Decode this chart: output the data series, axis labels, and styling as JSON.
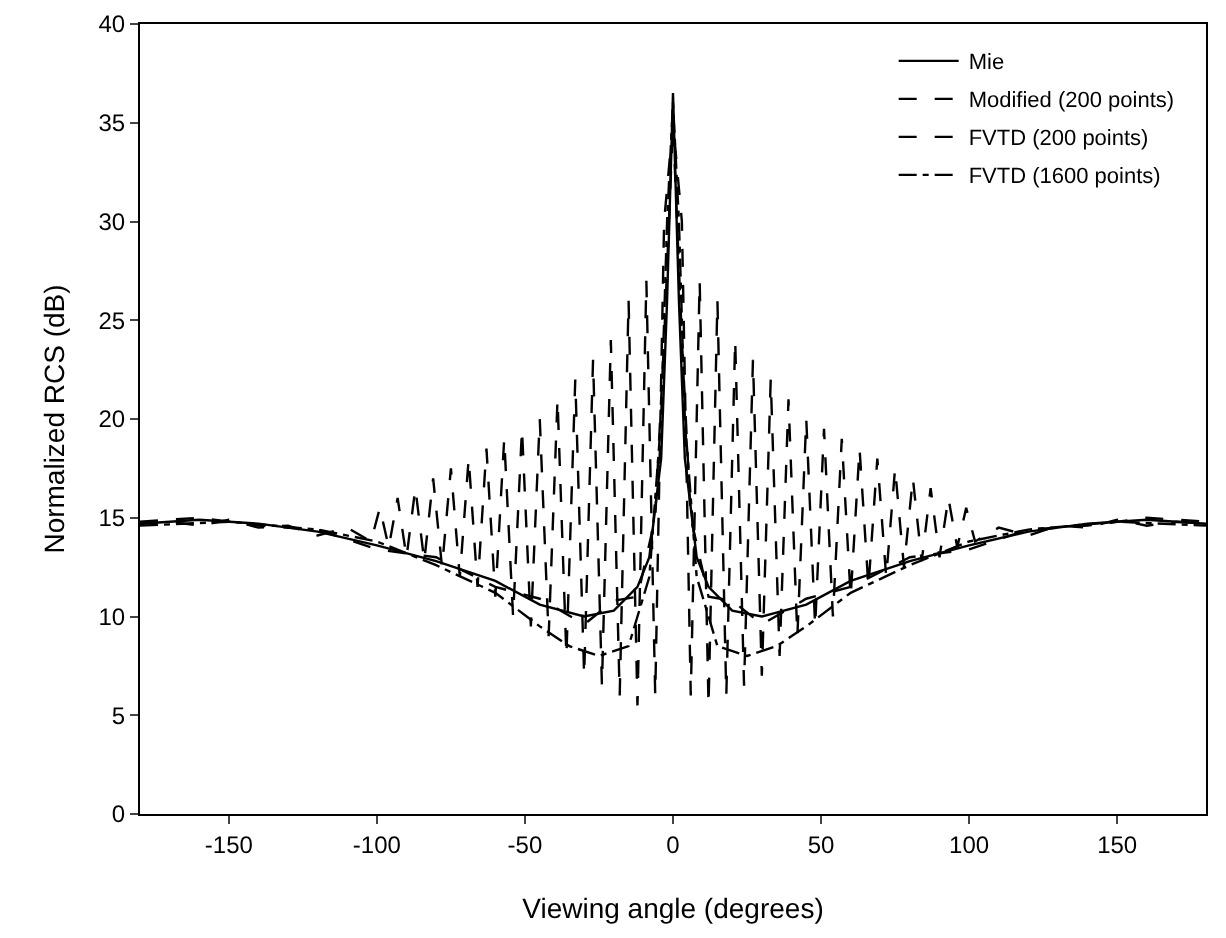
{
  "chart_data": {
    "type": "line",
    "xlabel": "Viewing angle (degrees)",
    "ylabel": "Normalized RCS (dB)",
    "xlim": [
      -180,
      180
    ],
    "xticks": [
      -150,
      -100,
      -50,
      0,
      50,
      100,
      150
    ],
    "ylim": [
      0,
      40
    ],
    "yticks": [
      0,
      5,
      10,
      15,
      20,
      25,
      30,
      35,
      40
    ],
    "grid": false,
    "legend": "top right",
    "marker": "none",
    "series": [
      {
        "name": "Mie",
        "color": "#000000",
        "line_style": "solid",
        "x": [
          -180,
          -160,
          -140,
          -120,
          -100,
          -80,
          -60,
          -45,
          -30,
          -20,
          -12,
          -8,
          -4,
          -2,
          0,
          2,
          4,
          8,
          12,
          20,
          30,
          45,
          60,
          80,
          100,
          120,
          140,
          160,
          180
        ],
        "values": [
          14.7,
          14.9,
          14.7,
          14.3,
          13.6,
          12.8,
          11.8,
          10.6,
          10.0,
          10.3,
          11.5,
          13,
          18,
          26,
          36.5,
          26,
          18,
          13,
          11.5,
          10.3,
          10.0,
          10.6,
          11.8,
          12.8,
          13.6,
          14.3,
          14.7,
          14.9,
          14.7
        ]
      },
      {
        "name": "Modified (200 points)",
        "color": "#000000",
        "line_style": "dashed",
        "x": [
          -180,
          -160,
          -140,
          -120,
          -100,
          -80,
          -60,
          -45,
          -30,
          -20,
          -12,
          -6,
          -3,
          0,
          3,
          6,
          12,
          20,
          30,
          45,
          60,
          80,
          100,
          120,
          140,
          160,
          180
        ],
        "values": [
          14.8,
          15.0,
          14.6,
          14.4,
          13.4,
          13.0,
          11.5,
          10.9,
          9.6,
          10.8,
          11,
          15,
          24,
          35,
          24,
          15,
          11,
          10.8,
          9.6,
          10.9,
          11.5,
          13.0,
          13.4,
          14.4,
          14.6,
          15.0,
          14.8
        ]
      },
      {
        "name": "FVTD (200 points)",
        "color": "#000000",
        "line_style": "dashed",
        "x": [
          -180,
          -170,
          -160,
          -150,
          -140,
          -130,
          -120,
          -110,
          -102,
          -99,
          -96,
          -93,
          -90,
          -87,
          -84,
          -81,
          -78,
          -75,
          -72,
          -69,
          -66,
          -63,
          -60,
          -57,
          -54,
          -51,
          -48,
          -45,
          -42,
          -39,
          -36,
          -33,
          -30,
          -27,
          -24,
          -21,
          -18,
          -15,
          -12,
          -9,
          -6,
          -3,
          0,
          3,
          6,
          9,
          12,
          15,
          18,
          21,
          24,
          27,
          30,
          33,
          36,
          39,
          42,
          45,
          48,
          51,
          54,
          57,
          60,
          63,
          66,
          69,
          72,
          75,
          78,
          81,
          84,
          87,
          90,
          93,
          96,
          99,
          102,
          110,
          120,
          130,
          140,
          150,
          160,
          170,
          180
        ],
        "values": [
          14.7,
          14.8,
          14.6,
          14.9,
          14.5,
          14.6,
          14.1,
          14.5,
          13.8,
          15.5,
          13.5,
          16,
          13,
          16.5,
          12.8,
          17,
          12.5,
          17.5,
          12,
          18,
          11.5,
          18.5,
          11,
          19,
          10,
          19.5,
          9.5,
          20,
          9,
          21,
          8,
          22,
          7,
          23,
          6.5,
          24,
          6,
          26,
          5.5,
          27,
          6,
          30,
          35,
          30,
          6,
          27,
          5.5,
          26,
          6,
          24,
          6.5,
          23,
          7,
          22,
          8,
          21,
          9,
          20,
          9.5,
          19.5,
          10,
          19,
          11,
          18.5,
          11.5,
          18,
          12,
          17.5,
          12.5,
          17,
          12.8,
          16.5,
          13,
          16,
          13.5,
          15.5,
          13.8,
          14.5,
          14.1,
          14.6,
          14.5,
          14.9,
          14.6,
          14.8,
          14.7
        ]
      },
      {
        "name": "FVTD (1600 points)",
        "color": "#000000",
        "line_style": "dotted",
        "x": [
          -180,
          -150,
          -120,
          -100,
          -80,
          -60,
          -45,
          -35,
          -25,
          -15,
          -8,
          -4,
          -2,
          0,
          2,
          4,
          8,
          15,
          25,
          35,
          45,
          60,
          80,
          100,
          120,
          150,
          180
        ],
        "values": [
          14.6,
          14.8,
          14.4,
          13.8,
          12.6,
          11.2,
          9.5,
          8.5,
          8,
          8.5,
          12,
          20,
          30,
          36,
          30,
          20,
          12,
          8.5,
          8,
          8.5,
          9.5,
          11.2,
          12.6,
          13.8,
          14.4,
          14.8,
          14.6
        ]
      }
    ]
  }
}
